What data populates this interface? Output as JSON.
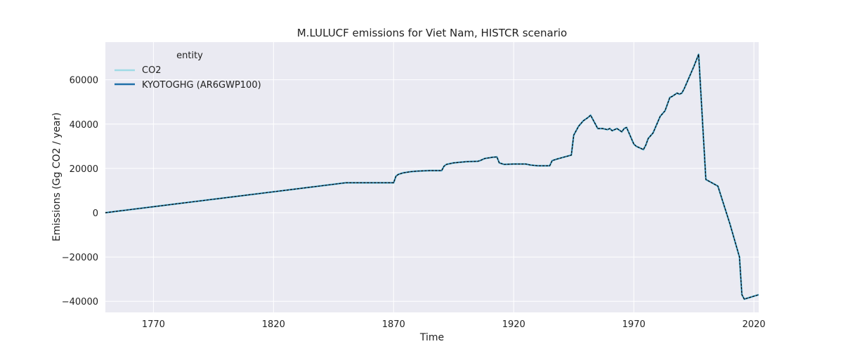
{
  "chart_data": {
    "type": "line",
    "title": "M.LULUCF emissions for Viet Nam, HISTCR scenario",
    "xlabel": "Time",
    "ylabel": "Emissions (Gg CO2 / year)",
    "xlim": [
      1750,
      2022
    ],
    "ylim": [
      -45000,
      77000
    ],
    "xticks": [
      1770,
      1820,
      1870,
      1920,
      1970,
      2020
    ],
    "yticks": [
      -40000,
      -20000,
      0,
      20000,
      40000,
      60000
    ],
    "ytick_labels": [
      "−40000",
      "−20000",
      "0",
      "20000",
      "40000",
      "60000"
    ],
    "grid": true,
    "background": "#eaeaf2",
    "legend": {
      "title": "entity",
      "position": "top-left",
      "entries": [
        {
          "label": "CO2",
          "color": "#9fdbe6"
        },
        {
          "label": "KYOTOGHG (AR6GWP100)",
          "color": "#1f6fa8"
        }
      ]
    },
    "x": [
      1750,
      1850,
      1870,
      1871,
      1872,
      1874,
      1877,
      1880,
      1885,
      1890,
      1891,
      1892,
      1895,
      1900,
      1905,
      1906,
      1908,
      1910,
      1911,
      1913,
      1914,
      1916,
      1920,
      1925,
      1927,
      1930,
      1935,
      1936,
      1938,
      1940,
      1944,
      1945,
      1947,
      1949,
      1951,
      1952,
      1955,
      1957,
      1959,
      1960,
      1961,
      1963,
      1965,
      1966,
      1967,
      1970,
      1971,
      1974,
      1975,
      1976,
      1978,
      1980,
      1981,
      1983,
      1985,
      1986,
      1988,
      1989,
      1990,
      1991,
      1995,
      1997,
      2000,
      2005,
      2010,
      2014,
      2015,
      2016,
      2022
    ],
    "series": [
      {
        "name": "CO2",
        "color": "#9fdbe6",
        "values": [
          0,
          13500,
          13500,
          16500,
          17300,
          18000,
          18500,
          18800,
          19000,
          19000,
          21000,
          21800,
          22500,
          23000,
          23200,
          23500,
          24500,
          24800,
          25000,
          25200,
          22500,
          21800,
          22000,
          22000,
          21500,
          21200,
          21200,
          23500,
          24200,
          24800,
          26000,
          35000,
          39000,
          41500,
          43000,
          44000,
          38000,
          38000,
          37500,
          38000,
          37000,
          38000,
          36500,
          38000,
          38500,
          31000,
          30000,
          28500,
          30500,
          33500,
          36000,
          41000,
          43500,
          46000,
          52000,
          52500,
          54000,
          53500,
          54000,
          56000,
          66000,
          71500,
          15000,
          12000,
          -5000,
          -20000,
          -37000,
          -39000,
          -37000
        ]
      },
      {
        "name": "KYOTOGHG (AR6GWP100)",
        "color": "#1f6fa8",
        "values": [
          0,
          13500,
          13500,
          16500,
          17300,
          18000,
          18500,
          18800,
          19000,
          19000,
          21000,
          21800,
          22500,
          23000,
          23200,
          23500,
          24500,
          24800,
          25000,
          25200,
          22500,
          21800,
          22000,
          22000,
          21500,
          21200,
          21200,
          23500,
          24200,
          24800,
          26000,
          35000,
          39000,
          41500,
          43000,
          44000,
          38000,
          38000,
          37500,
          38000,
          37000,
          38000,
          36500,
          38000,
          38500,
          31000,
          30000,
          28500,
          30500,
          33500,
          36000,
          41000,
          43500,
          46000,
          52000,
          52500,
          54000,
          53500,
          54000,
          56000,
          66000,
          71500,
          15000,
          12000,
          -5000,
          -20000,
          -37000,
          -39000,
          -37000
        ]
      }
    ]
  }
}
